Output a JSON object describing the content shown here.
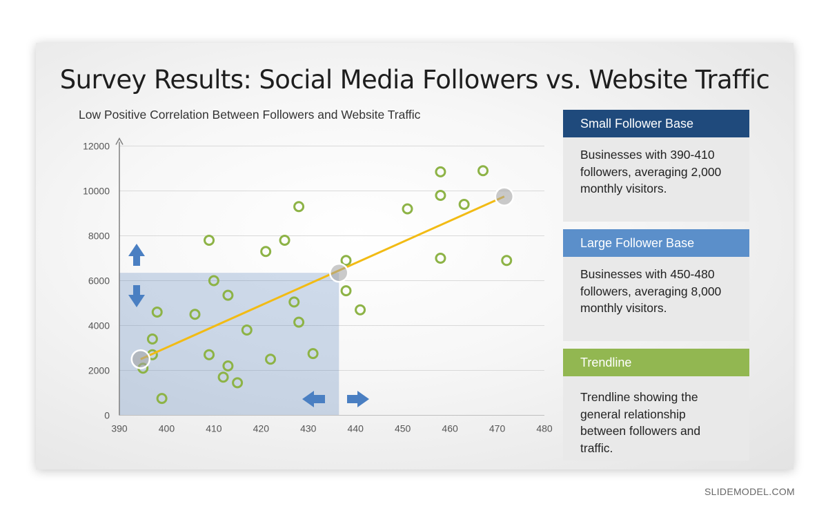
{
  "slide": {
    "title": "Survey Results: Social Media Followers vs. Website Traffic",
    "subtitle": "Low Positive Correlation Between Followers and Website Traffic"
  },
  "panels": [
    {
      "heading": "Small Follower Base",
      "body": "Businesses with 390-410 followers, averaging 2,000 monthly visitors.",
      "color": "#1f4a7c"
    },
    {
      "heading": "Large Follower Base",
      "body": "Businesses with 450-480 followers, averaging 8,000 monthly visitors.",
      "color": "#5b8fca"
    },
    {
      "heading": "Trendline",
      "body": "Trendline showing the general relationship between followers and traffic.",
      "color": "#92b751"
    }
  ],
  "credit": "SLIDEMODEL.COM",
  "chart_data": {
    "type": "scatter",
    "xlim": [
      390,
      480
    ],
    "ylim": [
      0,
      12000
    ],
    "xticks": [
      390,
      400,
      410,
      420,
      430,
      440,
      450,
      460,
      470,
      480
    ],
    "yticks": [
      0,
      2000,
      4000,
      6000,
      8000,
      10000,
      12000
    ],
    "grid": "horizontal",
    "points": [
      {
        "x": 395,
        "y": 2100
      },
      {
        "x": 397,
        "y": 2700
      },
      {
        "x": 397,
        "y": 3400
      },
      {
        "x": 398,
        "y": 4600
      },
      {
        "x": 399,
        "y": 750
      },
      {
        "x": 406,
        "y": 4500
      },
      {
        "x": 409,
        "y": 7800
      },
      {
        "x": 409,
        "y": 2700
      },
      {
        "x": 410,
        "y": 6000
      },
      {
        "x": 412,
        "y": 1700
      },
      {
        "x": 413,
        "y": 2200
      },
      {
        "x": 413,
        "y": 5350
      },
      {
        "x": 415,
        "y": 1450
      },
      {
        "x": 417,
        "y": 3800
      },
      {
        "x": 421,
        "y": 7300
      },
      {
        "x": 422,
        "y": 2500
      },
      {
        "x": 425,
        "y": 7800
      },
      {
        "x": 427,
        "y": 5050
      },
      {
        "x": 428,
        "y": 4150
      },
      {
        "x": 428,
        "y": 9300
      },
      {
        "x": 431,
        "y": 2750
      },
      {
        "x": 438,
        "y": 6900
      },
      {
        "x": 438,
        "y": 5550
      },
      {
        "x": 441,
        "y": 4700
      },
      {
        "x": 451,
        "y": 9200
      },
      {
        "x": 458,
        "y": 10850
      },
      {
        "x": 458,
        "y": 9800
      },
      {
        "x": 458,
        "y": 7000
      },
      {
        "x": 463,
        "y": 9400
      },
      {
        "x": 467,
        "y": 10900
      },
      {
        "x": 472,
        "y": 6900
      }
    ],
    "trendline": {
      "x": [
        394.5,
        471.5
      ],
      "y": [
        2500,
        9750
      ]
    },
    "highlight_markers": [
      {
        "x": 394.5,
        "y": 2500
      },
      {
        "x": 436.5,
        "y": 6350
      },
      {
        "x": 471.5,
        "y": 9750
      }
    ],
    "highlight_region": {
      "x": [
        390,
        436.5
      ],
      "y": [
        0,
        6350
      ]
    },
    "point_color": "#8db346",
    "trend_color": "#f2bb14",
    "region_color": "#4b78b4",
    "arrow_color": "#4a7fc2"
  }
}
